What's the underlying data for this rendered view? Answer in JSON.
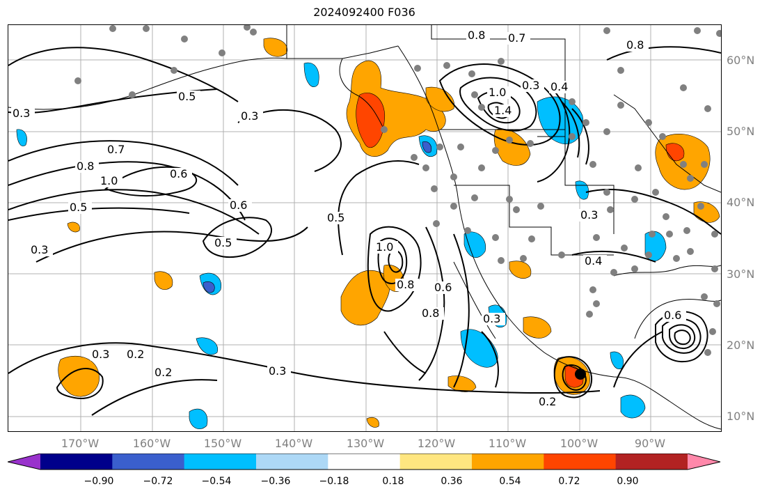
{
  "title": "2024092400 F036",
  "lat_labels": [
    "60°N",
    "50°N",
    "40°N",
    "30°N",
    "20°N",
    "10°N"
  ],
  "lon_labels": [
    "170°W",
    "160°W",
    "150°W",
    "140°W",
    "130°W",
    "120°W",
    "110°W",
    "100°W",
    "90°W"
  ],
  "contour_labels": [
    "0.8",
    "0.7",
    "0.8",
    "0.5",
    "0.3",
    "1.0",
    "0.4",
    "1.4",
    "0.3",
    "0.7",
    "0.8",
    "1.0",
    "0.5",
    "0.6",
    "0.3",
    "0.3",
    "0.5",
    "0.6",
    "0.5",
    "1.0",
    "0.8",
    "0.6",
    "0.8",
    "0.3",
    "0.4",
    "0.3",
    "0.3",
    "0.2",
    "0.2",
    "0.3",
    "0.2",
    "0.6"
  ],
  "colorbar": {
    "ticks": [
      "−0.90",
      "−0.72",
      "−0.54",
      "−0.36",
      "−0.18",
      "0.18",
      "0.36",
      "0.54",
      "0.72",
      "0.90"
    ],
    "colors": [
      "#9932CC",
      "#00008B",
      "#3A5FCD",
      "#00BFFF",
      "#ADD8F6",
      "#FFFFFF",
      "#FFE680",
      "#FFA500",
      "#FF4500",
      "#B22222",
      "#FF88AA"
    ]
  }
}
